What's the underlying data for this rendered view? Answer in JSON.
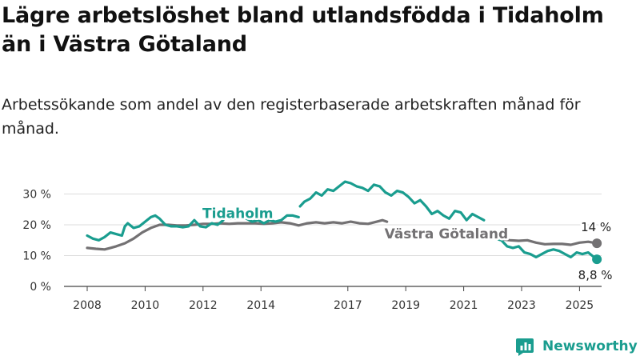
{
  "title": "Lägre arbetslöshet bland utlandsfödda i Tidaholm än i Västra Götaland",
  "subtitle": "Arbetssökande som andel av den registerbaserade arbetskraften månad för månad.",
  "brand": "Newsworthy",
  "colors": {
    "tidaholm": "#1a9d8f",
    "vg": "#737173",
    "grid": "#dddddd",
    "axis": "#444444"
  },
  "chart_data": {
    "type": "line",
    "title": "Lägre arbetslöshet bland utlandsfödda i Tidaholm än i Västra Götaland",
    "xlabel": "",
    "ylabel": "",
    "ylim": [
      0,
      35
    ],
    "xlim": [
      2008,
      2026
    ],
    "y_ticks": [
      "0 %",
      "10 %",
      "20 %",
      "30 %"
    ],
    "y_tick_values": [
      0,
      10,
      20,
      30
    ],
    "x_ticks": [
      "2008",
      "2010",
      "2012",
      "2014",
      "2017",
      "2019",
      "2021",
      "2023",
      "2025"
    ],
    "x_tick_values": [
      2008,
      2010,
      2012,
      2014,
      2017,
      2019,
      2021,
      2023,
      2025
    ],
    "grid": "horizontal",
    "series": [
      {
        "name": "Tidaholm",
        "end_label": "8,8 %",
        "segments": [
          [
            [
              2008.0,
              16.5
            ],
            [
              2008.2,
              15.5
            ],
            [
              2008.4,
              15.0
            ],
            [
              2008.6,
              16.0
            ],
            [
              2008.8,
              17.5
            ],
            [
              2009.0,
              17.0
            ],
            [
              2009.2,
              16.5
            ],
            [
              2009.3,
              19.5
            ],
            [
              2009.4,
              20.5
            ],
            [
              2009.6,
              19.0
            ],
            [
              2009.8,
              19.5
            ],
            [
              2010.0,
              21.0
            ],
            [
              2010.2,
              22.5
            ],
            [
              2010.35,
              23.0
            ],
            [
              2010.5,
              22.0
            ],
            [
              2010.7,
              20.0
            ],
            [
              2010.9,
              19.5
            ],
            [
              2011.1,
              19.5
            ],
            [
              2011.3,
              19.2
            ],
            [
              2011.5,
              19.5
            ],
            [
              2011.7,
              21.5
            ],
            [
              2011.9,
              19.5
            ],
            [
              2012.1,
              19.2
            ],
            [
              2012.3,
              20.5
            ],
            [
              2012.5,
              20.0
            ],
            [
              2012.7,
              21.5
            ],
            [
              2012.75,
              24.0
            ],
            [
              2012.9,
              22.0
            ],
            [
              2013.1,
              22.0
            ],
            [
              2013.3,
              23.0
            ],
            [
              2013.5,
              22.0
            ],
            [
              2013.7,
              21.0
            ],
            [
              2013.9,
              21.5
            ],
            [
              2014.1,
              20.5
            ],
            [
              2014.3,
              21.5
            ],
            [
              2014.5,
              21.0
            ],
            [
              2014.7,
              21.5
            ],
            [
              2014.9,
              23.0
            ],
            [
              2015.1,
              23.0
            ],
            [
              2015.3,
              22.5
            ]
          ],
          [
            [
              2015.35,
              26.0
            ],
            [
              2015.5,
              27.5
            ],
            [
              2015.7,
              28.5
            ],
            [
              2015.9,
              30.5
            ],
            [
              2016.1,
              29.5
            ],
            [
              2016.3,
              31.5
            ],
            [
              2016.5,
              31.0
            ],
            [
              2016.7,
              32.5
            ],
            [
              2016.9,
              34.0
            ],
            [
              2017.1,
              33.5
            ],
            [
              2017.3,
              32.5
            ],
            [
              2017.5,
              32.0
            ],
            [
              2017.7,
              31.0
            ],
            [
              2017.9,
              33.0
            ],
            [
              2018.1,
              32.5
            ],
            [
              2018.3,
              30.5
            ],
            [
              2018.5,
              29.5
            ],
            [
              2018.7,
              31.0
            ],
            [
              2018.9,
              30.5
            ],
            [
              2019.1,
              29.0
            ],
            [
              2019.3,
              27.0
            ],
            [
              2019.5,
              28.0
            ],
            [
              2019.7,
              26.0
            ],
            [
              2019.9,
              23.5
            ],
            [
              2020.1,
              24.5
            ],
            [
              2020.3,
              23.0
            ],
            [
              2020.5,
              22.0
            ],
            [
              2020.7,
              24.5
            ],
            [
              2020.9,
              24.0
            ],
            [
              2021.1,
              21.5
            ],
            [
              2021.3,
              23.5
            ],
            [
              2021.5,
              22.5
            ],
            [
              2021.7,
              21.5
            ]
          ],
          [
            [
              2022.0,
              16.5
            ],
            [
              2022.1,
              15.5
            ],
            [
              2022.3,
              15.0
            ],
            [
              2022.5,
              13.0
            ],
            [
              2022.7,
              12.5
            ],
            [
              2022.9,
              13.0
            ],
            [
              2023.1,
              11.0
            ],
            [
              2023.3,
              10.5
            ],
            [
              2023.5,
              9.5
            ],
            [
              2023.7,
              10.5
            ],
            [
              2023.9,
              11.5
            ],
            [
              2024.1,
              12.0
            ],
            [
              2024.3,
              11.5
            ],
            [
              2024.5,
              10.5
            ],
            [
              2024.7,
              9.5
            ],
            [
              2024.9,
              11.0
            ],
            [
              2025.1,
              10.5
            ],
            [
              2025.3,
              11.0
            ],
            [
              2025.5,
              9.5
            ],
            [
              2025.6,
              8.8
            ]
          ]
        ]
      },
      {
        "name": "Västra Götaland",
        "end_label": "14 %",
        "segments": [
          [
            [
              2008.0,
              12.5
            ],
            [
              2008.3,
              12.2
            ],
            [
              2008.6,
              12.0
            ],
            [
              2008.8,
              12.5
            ],
            [
              2009.0,
              13.0
            ],
            [
              2009.3,
              14.0
            ],
            [
              2009.6,
              15.5
            ],
            [
              2009.9,
              17.5
            ],
            [
              2010.2,
              19.0
            ],
            [
              2010.5,
              20.0
            ],
            [
              2010.8,
              20.0
            ],
            [
              2011.1,
              19.8
            ],
            [
              2011.4,
              19.8
            ],
            [
              2011.7,
              20.0
            ],
            [
              2012.0,
              20.3
            ],
            [
              2012.3,
              20.3
            ],
            [
              2012.6,
              20.5
            ],
            [
              2012.9,
              20.3
            ],
            [
              2013.2,
              20.5
            ],
            [
              2013.5,
              20.5
            ],
            [
              2013.8,
              20.5
            ],
            [
              2014.1,
              20.3
            ],
            [
              2014.4,
              20.5
            ],
            [
              2014.7,
              20.8
            ],
            [
              2015.0,
              20.5
            ],
            [
              2015.3,
              19.8
            ],
            [
              2015.6,
              20.5
            ],
            [
              2015.9,
              20.8
            ],
            [
              2016.2,
              20.5
            ],
            [
              2016.5,
              20.8
            ],
            [
              2016.8,
              20.5
            ],
            [
              2017.1,
              21.0
            ],
            [
              2017.4,
              20.5
            ],
            [
              2017.7,
              20.3
            ],
            [
              2018.0,
              21.0
            ],
            [
              2018.2,
              21.5
            ],
            [
              2018.35,
              21.0
            ]
          ],
          [
            [
              2022.0,
              16.0
            ],
            [
              2022.3,
              15.3
            ],
            [
              2022.6,
              15.0
            ],
            [
              2022.9,
              14.8
            ],
            [
              2023.2,
              15.0
            ],
            [
              2023.5,
              14.2
            ],
            [
              2023.8,
              13.7
            ],
            [
              2024.1,
              13.8
            ],
            [
              2024.4,
              13.8
            ],
            [
              2024.7,
              13.5
            ],
            [
              2025.0,
              14.2
            ],
            [
              2025.3,
              14.5
            ],
            [
              2025.6,
              14.0
            ]
          ]
        ]
      }
    ]
  }
}
